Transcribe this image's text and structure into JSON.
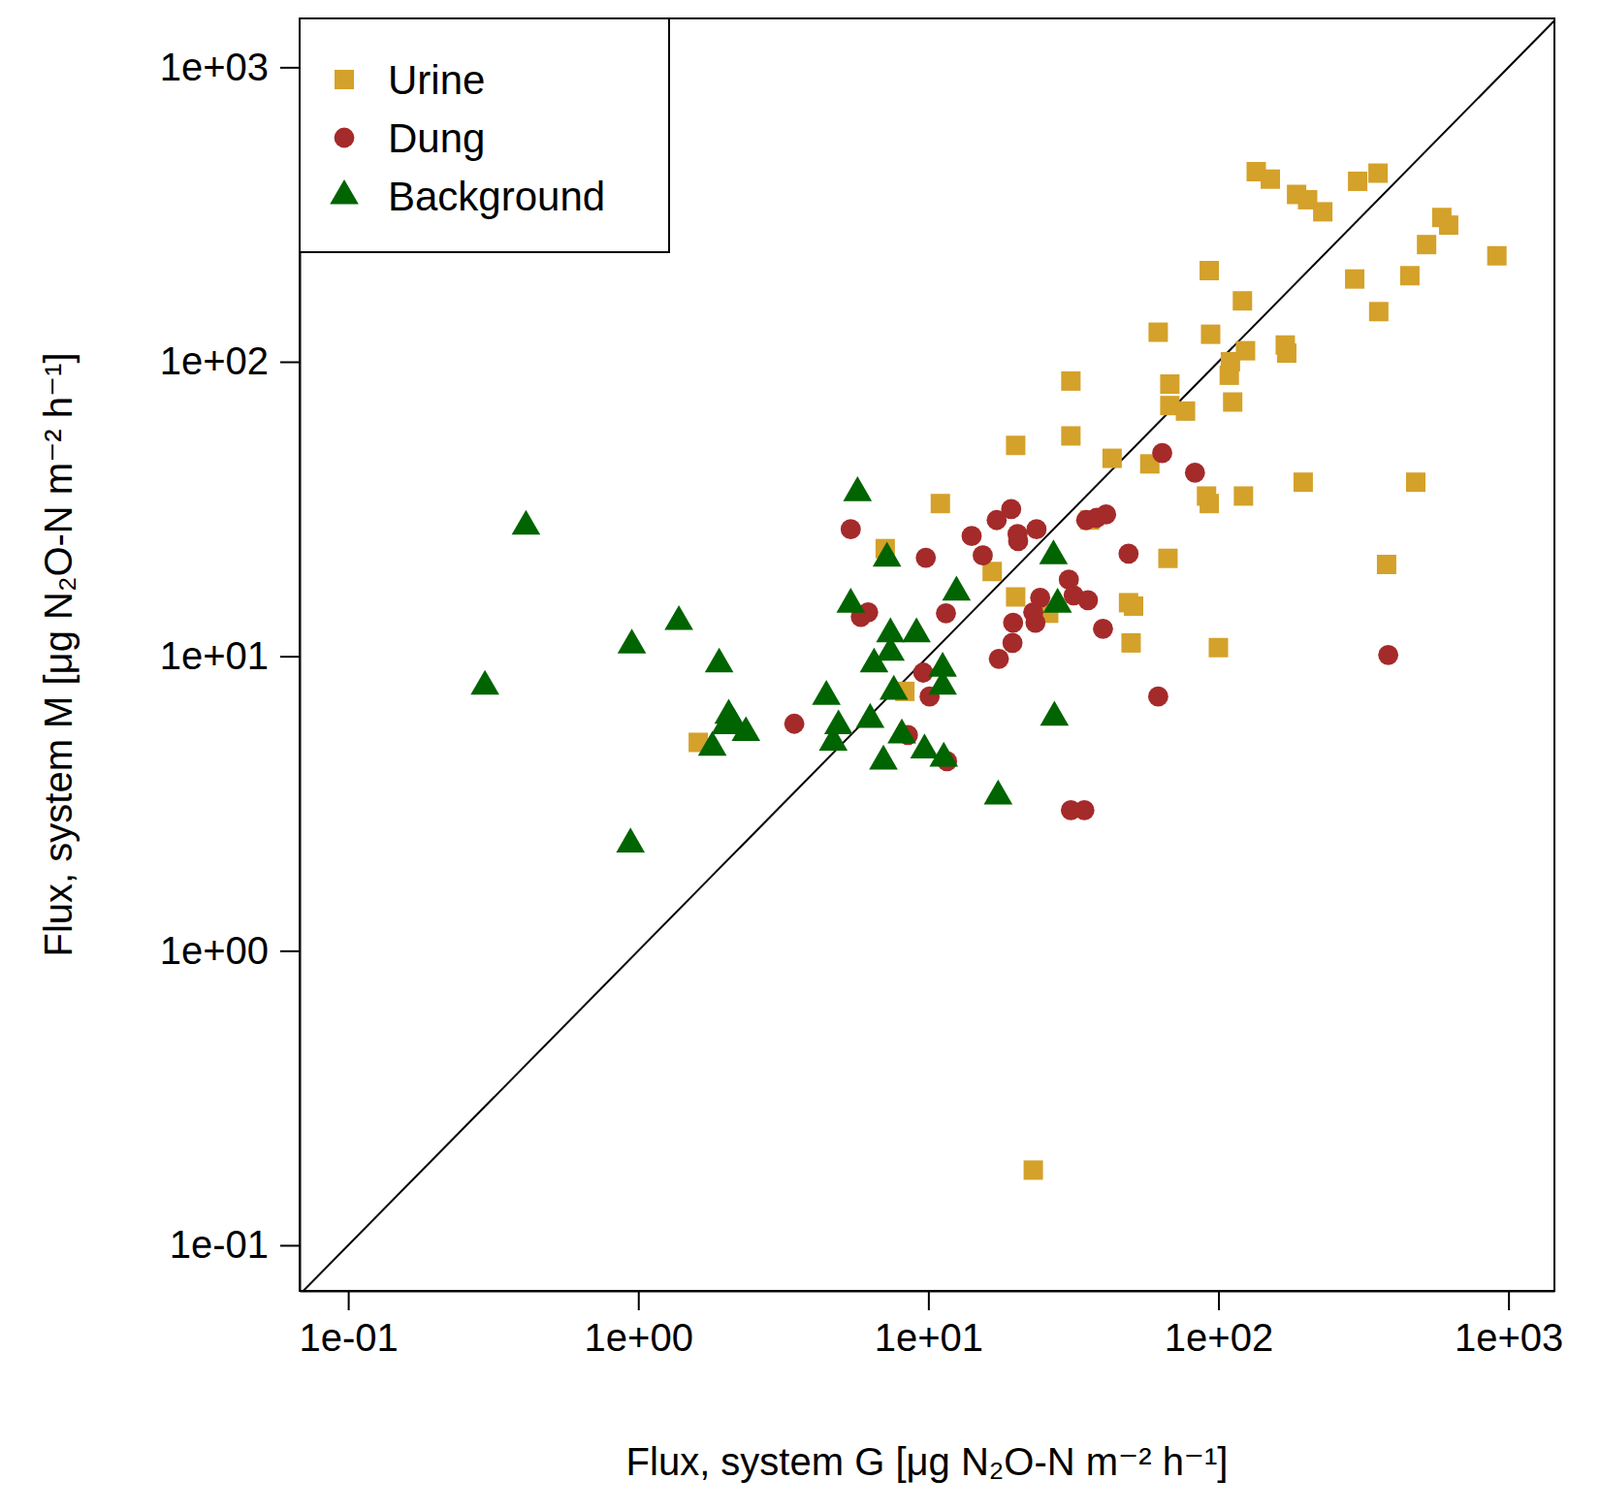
{
  "chart_data": {
    "type": "scatter",
    "x_label": "Flux, system G [μg N₂O-N m⁻² h⁻¹]",
    "y_label": "Flux, system M [μg N₂O-N m⁻² h⁻¹]",
    "log": true,
    "grid": false,
    "legend": "top-left",
    "xlim": [
      0.068,
      1440
    ],
    "ylim": [
      0.07,
      1465
    ],
    "xticks": [
      {
        "value": 0.1,
        "label": "1e-01"
      },
      {
        "value": 1,
        "label": "1e+00"
      },
      {
        "value": 10,
        "label": "1e+01"
      },
      {
        "value": 100,
        "label": "1e+02"
      },
      {
        "value": 1000,
        "label": "1e+03"
      }
    ],
    "yticks": [
      {
        "value": 0.1,
        "label": "1e-01"
      },
      {
        "value": 1,
        "label": "1e+00"
      },
      {
        "value": 10,
        "label": "1e+01"
      },
      {
        "value": 100,
        "label": "1e+02"
      },
      {
        "value": 1000,
        "label": "1e+03"
      }
    ],
    "series": [
      {
        "name": "Urine",
        "color": "#d4a12a",
        "marker": "square",
        "x": [
          135,
          151,
          186,
          203,
          229,
          302,
          355,
          589,
          622,
          522,
          912,
          457,
          295,
          357,
          93,
          121,
          62,
          94,
          124,
          170,
          172,
          110,
          109,
          31,
          68,
          68,
          77,
          112,
          20,
          31,
          43,
          58,
          91,
          93,
          122,
          196,
          479,
          11,
          36,
          7.1,
          67,
          380,
          16.6,
          20,
          49,
          51,
          26,
          50,
          100,
          8.3,
          1.61,
          23
        ],
        "values": [
          442,
          417,
          370,
          355,
          323,
          410,
          437,
          309,
          291,
          250,
          229,
          196,
          191,
          148,
          204,
          161,
          126,
          124,
          109,
          114,
          107,
          100,
          90,
          86,
          84,
          71,
          68,
          73,
          52,
          56,
          47,
          45,
          35,
          33,
          35,
          39,
          39,
          33,
          29,
          23.2,
          21.5,
          20.5,
          19.4,
          15.9,
          15.2,
          14.8,
          14.0,
          11.1,
          10.7,
          7.6,
          5.1,
          0.18
        ]
      },
      {
        "name": "Dung",
        "color": "#a52a2a",
        "marker": "circle",
        "x": [
          64,
          83,
          5.4,
          9.8,
          14.1,
          15.4,
          17.2,
          19.3,
          20.3,
          20.4,
          23.6,
          35,
          38,
          41,
          49,
          30.5,
          31.7,
          35.5,
          24.3,
          23,
          23.4,
          19.6,
          40,
          19.5,
          17.5,
          11.5,
          6.2,
          5.85,
          9.6,
          10.1,
          3.45,
          8.5,
          11.6,
          62,
          385,
          31,
          34.5
        ],
        "values": [
          49,
          42,
          27,
          21.6,
          25.6,
          22,
          29,
          31.6,
          26,
          24.6,
          27,
          29,
          29.5,
          30.3,
          22.3,
          18.2,
          16.1,
          15.5,
          15.8,
          14.1,
          13,
          13,
          12.4,
          11.1,
          9.8,
          14,
          14.1,
          13.6,
          8.8,
          7.3,
          5.9,
          5.4,
          4.4,
          7.3,
          10.1,
          3.0,
          3.0
        ]
      },
      {
        "name": "Background",
        "color": "#006400",
        "marker": "triangle",
        "x": [
          0.296,
          0.41,
          0.95,
          0.94,
          1.38,
          1.9,
          1.8,
          2.05,
          2.13,
          2.35,
          2.0,
          4.45,
          4.7,
          4.9,
          5.7,
          5.4,
          6.3,
          6.5,
          7.2,
          7.0,
          7.4,
          7.4,
          7.6,
          8.1,
          9.1,
          9.7,
          11.2,
          11.2,
          11.3,
          12.5,
          17.4,
          27,
          27.9,
          27.2
        ],
        "values": [
          7.9,
          27.6,
          10.9,
          2.3,
          13.1,
          9.4,
          4.9,
          6.3,
          5.9,
          5.5,
          5.8,
          7.3,
          5.1,
          5.8,
          35.9,
          15,
          6.1,
          9.4,
          21.5,
          4.4,
          11.9,
          10.3,
          7.6,
          5.4,
          11.9,
          4.8,
          9.1,
          7.9,
          4.5,
          16.5,
          3.35,
          21.9,
          15,
          6.2
        ]
      }
    ]
  }
}
